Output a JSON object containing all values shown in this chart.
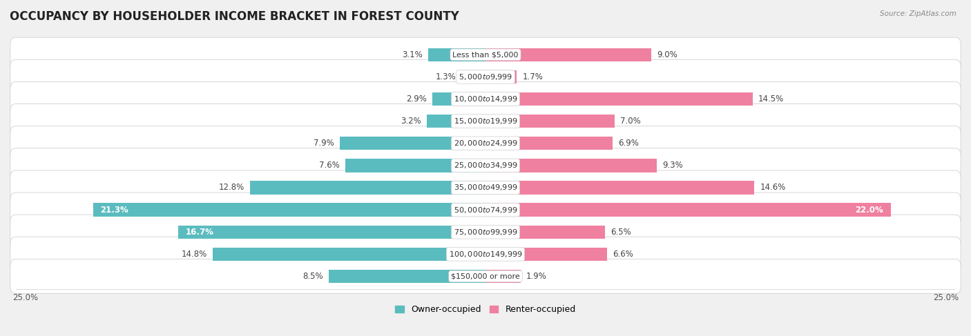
{
  "title": "OCCUPANCY BY HOUSEHOLDER INCOME BRACKET IN FOREST COUNTY",
  "source": "Source: ZipAtlas.com",
  "categories": [
    "Less than $5,000",
    "$5,000 to $9,999",
    "$10,000 to $14,999",
    "$15,000 to $19,999",
    "$20,000 to $24,999",
    "$25,000 to $34,999",
    "$35,000 to $49,999",
    "$50,000 to $74,999",
    "$75,000 to $99,999",
    "$100,000 to $149,999",
    "$150,000 or more"
  ],
  "owner_values": [
    3.1,
    1.3,
    2.9,
    3.2,
    7.9,
    7.6,
    12.8,
    21.3,
    16.7,
    14.8,
    8.5
  ],
  "renter_values": [
    9.0,
    1.7,
    14.5,
    7.0,
    6.9,
    9.3,
    14.6,
    22.0,
    6.5,
    6.6,
    1.9
  ],
  "owner_color": "#5bbcbf",
  "renter_color": "#f080a0",
  "background_color": "#f0f0f0",
  "row_color": "#e8e8ec",
  "xlim": 25.0,
  "bar_height": 0.6,
  "title_fontsize": 12,
  "label_fontsize": 8.5,
  "category_fontsize": 8,
  "legend_fontsize": 9
}
